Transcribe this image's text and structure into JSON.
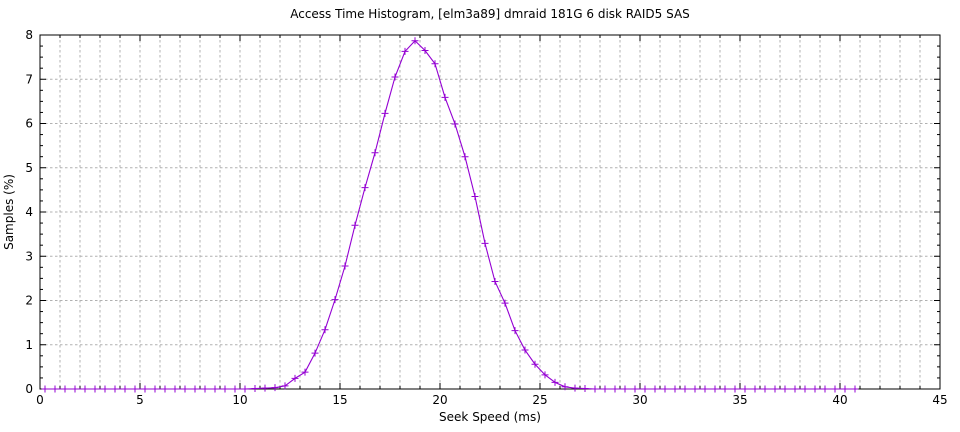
{
  "chart_data": {
    "type": "line",
    "title": "Access Time Histogram, [elm3a89] dmraid 181G 6 disk RAID5 SAS",
    "xlabel": "Seek Speed (ms)",
    "ylabel": "Samples (%)",
    "xlim": [
      0,
      45
    ],
    "ylim": [
      0,
      8
    ],
    "x_major_ticks": [
      0,
      5,
      10,
      15,
      20,
      25,
      30,
      35,
      40,
      45
    ],
    "y_major_ticks": [
      0,
      1,
      2,
      3,
      4,
      5,
      6,
      7,
      8
    ],
    "x_minor_step": 1,
    "y_minor_step": 0.25,
    "grid": {
      "style": "dashed",
      "color": "#b0b0b0",
      "vertical_step": 1,
      "horizontal_step": 1
    },
    "legend_position": "none",
    "background_color": "#ffffff",
    "border_color": "#000000",
    "series": [
      {
        "name": "samples",
        "color": "#9400d3",
        "marker": "plus",
        "points": [
          [
            0.25,
            0
          ],
          [
            0.75,
            0
          ],
          [
            1.25,
            0
          ],
          [
            1.75,
            0
          ],
          [
            2.25,
            0
          ],
          [
            2.75,
            0
          ],
          [
            3.25,
            0
          ],
          [
            3.75,
            0
          ],
          [
            4.25,
            0
          ],
          [
            4.75,
            0
          ],
          [
            5.25,
            0
          ],
          [
            5.75,
            0
          ],
          [
            6.25,
            0
          ],
          [
            6.75,
            0
          ],
          [
            7.25,
            0
          ],
          [
            7.75,
            0
          ],
          [
            8.25,
            0
          ],
          [
            8.75,
            0
          ],
          [
            9.25,
            0
          ],
          [
            9.75,
            0
          ],
          [
            10.25,
            0
          ],
          [
            10.75,
            0.01
          ],
          [
            11.25,
            0.02
          ],
          [
            11.75,
            0.03
          ],
          [
            12.25,
            0.07
          ],
          [
            12.75,
            0.24
          ],
          [
            13.25,
            0.38
          ],
          [
            13.75,
            0.81
          ],
          [
            14.25,
            1.34
          ],
          [
            14.75,
            2.02
          ],
          [
            15.25,
            2.78
          ],
          [
            15.75,
            3.7
          ],
          [
            16.25,
            4.55
          ],
          [
            16.75,
            5.34
          ],
          [
            17.25,
            6.23
          ],
          [
            17.75,
            7.05
          ],
          [
            18.25,
            7.63
          ],
          [
            18.75,
            7.87
          ],
          [
            19.25,
            7.65
          ],
          [
            19.75,
            7.35
          ],
          [
            20.25,
            6.59
          ],
          [
            20.75,
            5.99
          ],
          [
            21.25,
            5.25
          ],
          [
            21.75,
            4.35
          ],
          [
            22.25,
            3.29
          ],
          [
            22.75,
            2.43
          ],
          [
            23.25,
            1.94
          ],
          [
            23.75,
            1.32
          ],
          [
            24.25,
            0.88
          ],
          [
            24.75,
            0.56
          ],
          [
            25.25,
            0.32
          ],
          [
            25.75,
            0.15
          ],
          [
            26.25,
            0.05
          ],
          [
            26.75,
            0.02
          ],
          [
            27.25,
            0.01
          ],
          [
            27.75,
            0
          ],
          [
            28.25,
            0
          ],
          [
            28.75,
            0
          ],
          [
            29.25,
            0
          ],
          [
            29.75,
            0
          ],
          [
            30.25,
            0
          ],
          [
            30.75,
            0
          ],
          [
            31.25,
            0
          ],
          [
            31.75,
            0
          ],
          [
            32.25,
            0
          ],
          [
            32.75,
            0
          ],
          [
            33.25,
            0
          ],
          [
            33.75,
            0
          ],
          [
            34.25,
            0
          ],
          [
            34.75,
            0
          ],
          [
            35.25,
            0
          ],
          [
            35.75,
            0
          ],
          [
            36.25,
            0
          ],
          [
            36.75,
            0
          ],
          [
            37.25,
            0
          ],
          [
            37.75,
            0
          ],
          [
            38.25,
            0
          ],
          [
            38.75,
            0
          ],
          [
            39.25,
            0
          ],
          [
            39.75,
            0
          ],
          [
            40.25,
            0
          ],
          [
            40.75,
            0
          ]
        ]
      }
    ]
  }
}
